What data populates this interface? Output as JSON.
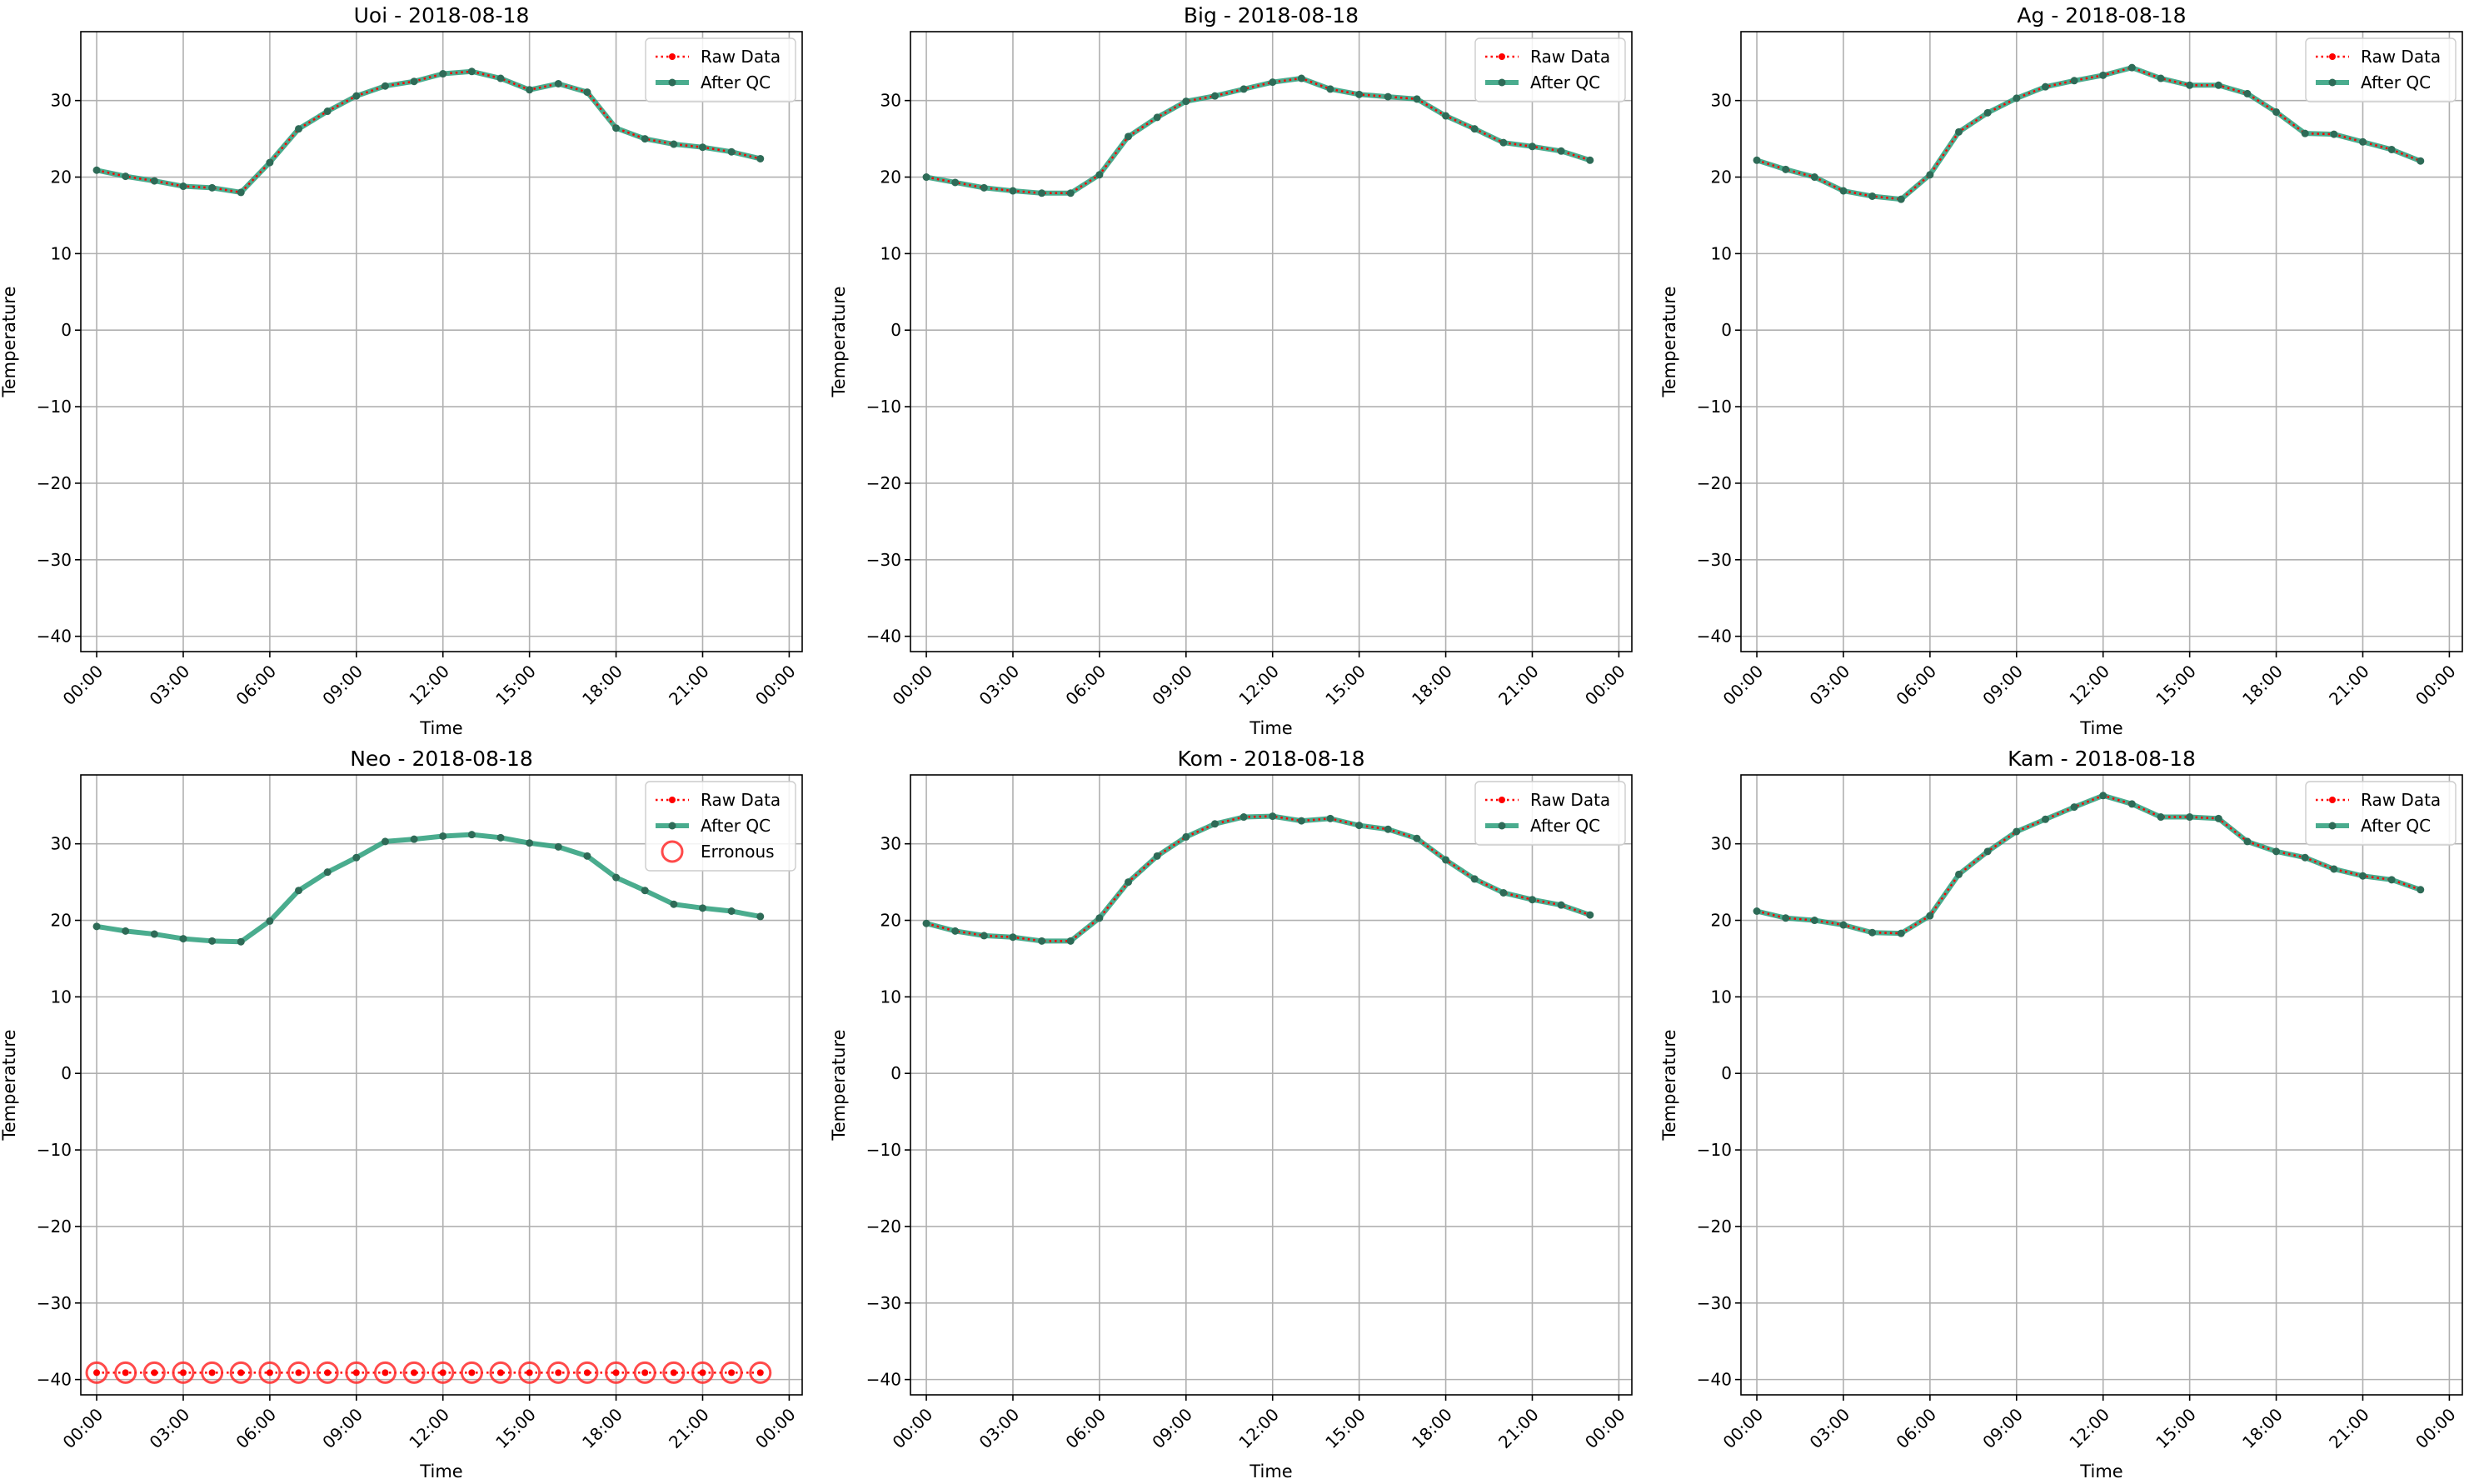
{
  "chart_data": [
    {
      "type": "line",
      "title": "Uoi - 2018-08-18",
      "xlabel": "Time",
      "ylabel": "Temperature",
      "xticks": [
        "00:00",
        "03:00",
        "06:00",
        "09:00",
        "12:00",
        "15:00",
        "18:00",
        "21:00",
        "00:00"
      ],
      "yticks": [
        -40,
        -30,
        -20,
        -10,
        0,
        10,
        20,
        30
      ],
      "ylim": [
        -42,
        39
      ],
      "grid": true,
      "legend_position": "top-right",
      "legend": [
        "Raw Data",
        "After QC"
      ],
      "x_hours": [
        0,
        1,
        2,
        3,
        4,
        5,
        6,
        7,
        8,
        9,
        10,
        11,
        12,
        13,
        14,
        15,
        16,
        17,
        18,
        19,
        20,
        21,
        22,
        23
      ],
      "series": [
        {
          "name": "Raw Data",
          "values": [
            20.9,
            20.1,
            19.5,
            18.8,
            18.6,
            18.0,
            21.9,
            26.3,
            28.6,
            30.6,
            31.9,
            32.5,
            33.5,
            33.8,
            32.9,
            31.4,
            32.2,
            31.1,
            26.4,
            25.0,
            24.3,
            23.9,
            23.3,
            22.4
          ]
        },
        {
          "name": "After QC",
          "values": [
            20.9,
            20.1,
            19.5,
            18.8,
            18.6,
            18.0,
            21.9,
            26.3,
            28.6,
            30.6,
            31.9,
            32.5,
            33.5,
            33.8,
            32.9,
            31.4,
            32.2,
            31.1,
            26.4,
            25.0,
            24.3,
            23.9,
            23.3,
            22.4
          ]
        }
      ]
    },
    {
      "type": "line",
      "title": "Big - 2018-08-18",
      "xlabel": "Time",
      "ylabel": "Temperature",
      "xticks": [
        "00:00",
        "03:00",
        "06:00",
        "09:00",
        "12:00",
        "15:00",
        "18:00",
        "21:00",
        "00:00"
      ],
      "yticks": [
        -40,
        -30,
        -20,
        -10,
        0,
        10,
        20,
        30
      ],
      "ylim": [
        -42,
        39
      ],
      "grid": true,
      "legend_position": "top-right",
      "legend": [
        "Raw Data",
        "After QC"
      ],
      "x_hours": [
        0,
        1,
        2,
        3,
        4,
        5,
        6,
        7,
        8,
        9,
        10,
        11,
        12,
        13,
        14,
        15,
        16,
        17,
        18,
        19,
        20,
        21,
        22,
        23
      ],
      "series": [
        {
          "name": "Raw Data",
          "values": [
            20.0,
            19.3,
            18.6,
            18.2,
            17.9,
            17.9,
            20.3,
            25.3,
            27.8,
            29.9,
            30.6,
            31.5,
            32.4,
            32.9,
            31.5,
            30.8,
            30.5,
            30.2,
            28.0,
            26.3,
            24.5,
            24.0,
            23.4,
            22.2
          ]
        },
        {
          "name": "After QC",
          "values": [
            20.0,
            19.3,
            18.6,
            18.2,
            17.9,
            17.9,
            20.3,
            25.3,
            27.8,
            29.9,
            30.6,
            31.5,
            32.4,
            32.9,
            31.5,
            30.8,
            30.5,
            30.2,
            28.0,
            26.3,
            24.5,
            24.0,
            23.4,
            22.2
          ]
        }
      ]
    },
    {
      "type": "line",
      "title": "Ag - 2018-08-18",
      "xlabel": "Time",
      "ylabel": "Temperature",
      "xticks": [
        "00:00",
        "03:00",
        "06:00",
        "09:00",
        "12:00",
        "15:00",
        "18:00",
        "21:00",
        "00:00"
      ],
      "yticks": [
        -40,
        -30,
        -20,
        -10,
        0,
        10,
        20,
        30
      ],
      "ylim": [
        -42,
        39
      ],
      "grid": true,
      "legend_position": "top-right",
      "legend": [
        "Raw Data",
        "After QC"
      ],
      "x_hours": [
        0,
        1,
        2,
        3,
        4,
        5,
        6,
        7,
        8,
        9,
        10,
        11,
        12,
        13,
        14,
        15,
        16,
        17,
        18,
        19,
        20,
        21,
        22,
        23
      ],
      "series": [
        {
          "name": "Raw Data",
          "values": [
            22.2,
            21.0,
            20.0,
            18.2,
            17.5,
            17.1,
            20.3,
            25.9,
            28.4,
            30.3,
            31.8,
            32.6,
            33.3,
            34.3,
            32.9,
            32.0,
            32.0,
            30.9,
            28.5,
            25.7,
            25.6,
            24.6,
            23.6,
            22.1
          ]
        },
        {
          "name": "After QC",
          "values": [
            22.2,
            21.0,
            20.0,
            18.2,
            17.5,
            17.1,
            20.3,
            25.9,
            28.4,
            30.3,
            31.8,
            32.6,
            33.3,
            34.3,
            32.9,
            32.0,
            32.0,
            30.9,
            28.5,
            25.7,
            25.6,
            24.6,
            23.6,
            22.1
          ]
        }
      ]
    },
    {
      "type": "line",
      "title": "Neo - 2018-08-18",
      "xlabel": "Time",
      "ylabel": "Temperature",
      "xticks": [
        "00:00",
        "03:00",
        "06:00",
        "09:00",
        "12:00",
        "15:00",
        "18:00",
        "21:00",
        "00:00"
      ],
      "yticks": [
        -40,
        -30,
        -20,
        -10,
        0,
        10,
        20,
        30
      ],
      "ylim": [
        -42,
        39
      ],
      "grid": true,
      "legend_position": "top-right",
      "legend": [
        "Raw Data",
        "After QC",
        "Erronous"
      ],
      "x_hours": [
        0,
        1,
        2,
        3,
        4,
        5,
        6,
        7,
        8,
        9,
        10,
        11,
        12,
        13,
        14,
        15,
        16,
        17,
        18,
        19,
        20,
        21,
        22,
        23
      ],
      "series": [
        {
          "name": "Raw Data",
          "values": [
            -39.1,
            -39.1,
            -39.1,
            -39.1,
            -39.1,
            -39.1,
            -39.1,
            -39.1,
            -39.1,
            -39.1,
            -39.1,
            -39.1,
            -39.1,
            -39.1,
            -39.1,
            -39.1,
            -39.1,
            -39.1,
            -39.1,
            -39.1,
            -39.1,
            -39.1,
            -39.1,
            -39.1
          ]
        },
        {
          "name": "After QC",
          "values": [
            19.2,
            18.6,
            18.2,
            17.6,
            17.3,
            17.2,
            19.9,
            23.9,
            26.3,
            28.2,
            30.3,
            30.6,
            31.0,
            31.2,
            30.8,
            30.1,
            29.6,
            28.4,
            25.6,
            23.9,
            22.1,
            21.6,
            21.2,
            20.5
          ]
        },
        {
          "name": "Erronous",
          "values": [
            -39.1,
            -39.1,
            -39.1,
            -39.1,
            -39.1,
            -39.1,
            -39.1,
            -39.1,
            -39.1,
            -39.1,
            -39.1,
            -39.1,
            -39.1,
            -39.1,
            -39.1,
            -39.1,
            -39.1,
            -39.1,
            -39.1,
            -39.1,
            -39.1,
            -39.1,
            -39.1,
            -39.1
          ]
        }
      ]
    },
    {
      "type": "line",
      "title": "Kom - 2018-08-18",
      "xlabel": "Time",
      "ylabel": "Temperature",
      "xticks": [
        "00:00",
        "03:00",
        "06:00",
        "09:00",
        "12:00",
        "15:00",
        "18:00",
        "21:00",
        "00:00"
      ],
      "yticks": [
        -40,
        -30,
        -20,
        -10,
        0,
        10,
        20,
        30
      ],
      "ylim": [
        -42,
        39
      ],
      "grid": true,
      "legend_position": "top-right",
      "legend": [
        "Raw Data",
        "After QC"
      ],
      "x_hours": [
        0,
        1,
        2,
        3,
        4,
        5,
        6,
        7,
        8,
        9,
        10,
        11,
        12,
        13,
        14,
        15,
        16,
        17,
        18,
        19,
        20,
        21,
        22,
        23
      ],
      "series": [
        {
          "name": "Raw Data",
          "values": [
            19.6,
            18.6,
            18.0,
            17.8,
            17.3,
            17.3,
            20.3,
            25.0,
            28.4,
            30.9,
            32.6,
            33.5,
            33.6,
            33.0,
            33.3,
            32.4,
            31.9,
            30.7,
            27.9,
            25.4,
            23.6,
            22.7,
            22.0,
            20.7
          ]
        },
        {
          "name": "After QC",
          "values": [
            19.6,
            18.6,
            18.0,
            17.8,
            17.3,
            17.3,
            20.3,
            25.0,
            28.4,
            30.9,
            32.6,
            33.5,
            33.6,
            33.0,
            33.3,
            32.4,
            31.9,
            30.7,
            27.9,
            25.4,
            23.6,
            22.7,
            22.0,
            20.7
          ]
        }
      ]
    },
    {
      "type": "line",
      "title": "Kam - 2018-08-18",
      "xlabel": "Time",
      "ylabel": "Temperature",
      "xticks": [
        "00:00",
        "03:00",
        "06:00",
        "09:00",
        "12:00",
        "15:00",
        "18:00",
        "21:00",
        "00:00"
      ],
      "yticks": [
        -40,
        -30,
        -20,
        -10,
        0,
        10,
        20,
        30
      ],
      "ylim": [
        -42,
        39
      ],
      "grid": true,
      "legend_position": "top-right",
      "legend": [
        "Raw Data",
        "After QC"
      ],
      "x_hours": [
        0,
        1,
        2,
        3,
        4,
        5,
        6,
        7,
        8,
        9,
        10,
        11,
        12,
        13,
        14,
        15,
        16,
        17,
        18,
        19,
        20,
        21,
        22,
        23
      ],
      "series": [
        {
          "name": "Raw Data",
          "values": [
            21.2,
            20.3,
            20.0,
            19.4,
            18.4,
            18.3,
            20.6,
            26.0,
            29.0,
            31.6,
            33.2,
            34.8,
            36.3,
            35.2,
            33.5,
            33.5,
            33.3,
            30.3,
            29.0,
            28.2,
            26.7,
            25.8,
            25.3,
            24.0
          ]
        },
        {
          "name": "After QC",
          "values": [
            21.2,
            20.3,
            20.0,
            19.4,
            18.4,
            18.3,
            20.6,
            26.0,
            29.0,
            31.6,
            33.2,
            34.8,
            36.3,
            35.2,
            33.5,
            33.5,
            33.3,
            30.3,
            29.0,
            28.2,
            26.7,
            25.8,
            25.3,
            24.0
          ]
        }
      ]
    }
  ],
  "colors": {
    "raw": "#ff0000",
    "qc": "#2a9d7a",
    "qc_marker": "#2e6b57",
    "erroneous": "#ff2a2a",
    "grid": "#b0b0b0",
    "axis": "#000000"
  }
}
